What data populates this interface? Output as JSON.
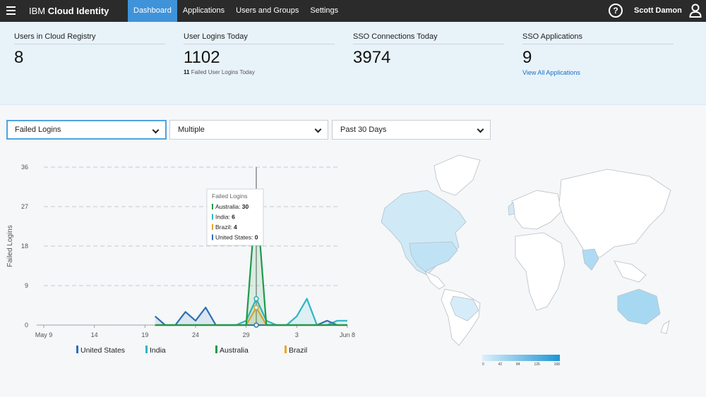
{
  "header": {
    "brand_prefix": "IBM",
    "brand_main": "Cloud Identity",
    "nav": [
      "Dashboard",
      "Applications",
      "Users and Groups",
      "Settings"
    ],
    "help": "?",
    "user_name": "Scott Damon"
  },
  "stats": [
    {
      "label": "Users in Cloud Registry",
      "value": "8"
    },
    {
      "label": "User Logins Today",
      "value": "1102",
      "sub_count": "11",
      "sub_text": "Failed User Logins Today"
    },
    {
      "label": "SSO Connections Today",
      "value": "3974"
    },
    {
      "label": "SSO Applications",
      "value": "9",
      "link": "View All Applications"
    }
  ],
  "filters": {
    "metric": "Failed Logins",
    "region": "Multiple",
    "period": "Past 30 Days"
  },
  "colors": {
    "united_states": "#2d6fb5",
    "india": "#2fb5c4",
    "australia": "#1e9a4a",
    "brazil": "#f0a420",
    "map_land": "#ffffff",
    "map_highlight": "#bfe2f5"
  },
  "chart_data": {
    "type": "line",
    "ylabel": "Failed Logins",
    "ylim": [
      0,
      36
    ],
    "yticks": [
      "0",
      "9",
      "18",
      "27",
      "36"
    ],
    "x": [
      1,
      2,
      3,
      4,
      5,
      6,
      7,
      8,
      9,
      10,
      11,
      12,
      13,
      14,
      15,
      16,
      17,
      18,
      19,
      20,
      21,
      22,
      23,
      24,
      25,
      26,
      27,
      28,
      29,
      30,
      31
    ],
    "xticks": [
      {
        "x": 1,
        "label": "May 9"
      },
      {
        "x": 6,
        "label": "14"
      },
      {
        "x": 11,
        "label": "19"
      },
      {
        "x": 16,
        "label": "24"
      },
      {
        "x": 21,
        "label": "29"
      },
      {
        "x": 26,
        "label": "3"
      },
      {
        "x": 31,
        "label": "Jun 8"
      }
    ],
    "series": [
      {
        "name": "United States",
        "values": [
          null,
          null,
          null,
          null,
          null,
          null,
          null,
          null,
          null,
          null,
          null,
          2,
          0,
          0,
          3,
          1,
          4,
          0,
          0,
          0,
          0,
          0,
          0,
          0,
          0,
          0,
          0,
          0,
          1,
          0,
          0
        ]
      },
      {
        "name": "India",
        "values": [
          null,
          null,
          null,
          null,
          null,
          null,
          null,
          null,
          null,
          null,
          null,
          0,
          0,
          0,
          0,
          0,
          0,
          0,
          0,
          0,
          1,
          6,
          1,
          0,
          0,
          2,
          6,
          0,
          0,
          1,
          1
        ]
      },
      {
        "name": "Australia",
        "values": [
          null,
          null,
          null,
          null,
          null,
          null,
          null,
          null,
          null,
          null,
          null,
          0,
          0,
          0,
          0,
          0,
          0,
          0,
          0,
          0,
          0,
          30,
          0,
          0,
          0,
          0,
          0,
          0,
          0,
          0,
          0
        ]
      },
      {
        "name": "Brazil",
        "values": [
          null,
          null,
          null,
          null,
          null,
          null,
          null,
          null,
          null,
          null,
          null,
          0,
          0,
          0,
          0,
          0,
          0,
          0,
          0,
          0,
          0,
          4,
          0,
          0,
          0,
          0,
          0,
          0,
          0,
          0,
          0
        ]
      }
    ],
    "tooltip": {
      "title": "Failed Logins",
      "x": 22,
      "entries": [
        {
          "name": "Australia",
          "value": "30"
        },
        {
          "name": "India",
          "value": "6"
        },
        {
          "name": "Brazil",
          "value": "4"
        },
        {
          "name": "United States",
          "value": "0"
        }
      ]
    },
    "legend": [
      "United States",
      "India",
      "Australia",
      "Brazil"
    ]
  },
  "map_scale": [
    "0",
    "42",
    "84",
    "126",
    "168"
  ]
}
